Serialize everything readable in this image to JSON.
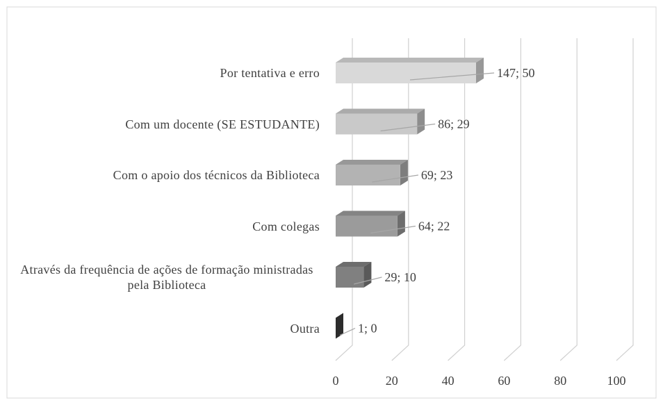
{
  "chart_data": {
    "type": "bar3d_horizontal",
    "categories": [
      "Por tentativa e erro",
      "Com um docente (SE ESTUDANTE)",
      "Com o apoio dos técnicos da Biblioteca",
      "Com colegas",
      "Através da frequência de ações de formação ministradas pela Biblioteca",
      "Outra"
    ],
    "values": [
      50,
      29,
      23,
      22,
      10,
      0
    ],
    "value_labels": [
      "147; 50",
      "86; 29",
      "69; 23",
      "64; 22",
      "29; 10",
      "1; 0"
    ],
    "colors": [
      "#d9d9d9",
      "#c9c9c9",
      "#b3b3b3",
      "#9b9b9b",
      "#808080",
      "#3f3f3f"
    ],
    "xlim": [
      0,
      100
    ],
    "xticks": [
      0,
      20,
      40,
      60,
      80,
      100
    ],
    "grid": true
  }
}
